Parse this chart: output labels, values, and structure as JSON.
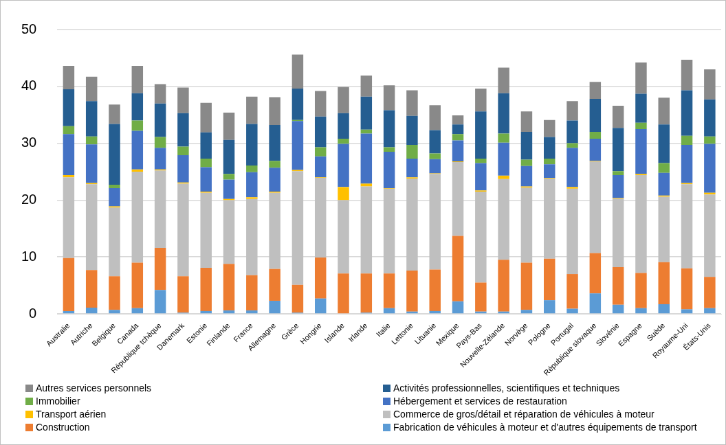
{
  "chart_data": {
    "type": "bar",
    "stacked": true,
    "categories": [
      "Australie",
      "Autriche",
      "Belgique",
      "Canada",
      "République tchèque",
      "Danemark",
      "Estonie",
      "Finlande",
      "France",
      "Allemagne",
      "Grèce",
      "Hongrie",
      "Islande",
      "Irlande",
      "Italie",
      "Lettonie",
      "Lituanie",
      "Mexique",
      "Pays-Bas",
      "Nouvelle-Zélande",
      "Norvège",
      "Pologne",
      "Portugal",
      "République slovaque",
      "Slovénie",
      "Espagne",
      "Suède",
      "Royaume-Uni",
      "États-Unis"
    ],
    "series": [
      {
        "name": "Fabrication de véhicules à moteur et d'autres équipements de transport",
        "color": "#5b9bd5",
        "values": [
          0.5,
          1.1,
          0.7,
          1.0,
          4.2,
          0.2,
          0.5,
          0.6,
          0.6,
          2.3,
          0.2,
          2.7,
          null,
          0.2,
          1.0,
          0.4,
          0.5,
          2.2,
          0.4,
          0.4,
          0.7,
          2.4,
          0.9,
          3.6,
          1.6,
          1.0,
          1.7,
          0.8,
          1.0
        ]
      },
      {
        "name": "Construction",
        "color": "#ed7d31",
        "values": [
          9.3,
          6.6,
          5.9,
          8.0,
          7.4,
          6.4,
          7.6,
          8.2,
          6.2,
          5.6,
          4.9,
          7.2,
          7.1,
          6.9,
          6.1,
          7.2,
          7.3,
          11.5,
          5.1,
          9.1,
          8.3,
          7.3,
          6.1,
          7.1,
          6.6,
          6.2,
          7.4,
          7.2,
          5.5
        ]
      },
      {
        "name": "Commerce de gros/détail et réparation de véhicules à moteur",
        "color": "#bfbfbf",
        "values": [
          14.2,
          15.1,
          12.1,
          16.0,
          13.6,
          16.3,
          13.2,
          11.2,
          13.4,
          13.4,
          20.0,
          14.0,
          12.9,
          15.3,
          14.9,
          16.2,
          16.8,
          13.0,
          16.0,
          14.2,
          13.2,
          14.1,
          15.0,
          16.1,
          12.1,
          17.2,
          11.5,
          14.8,
          14.5
        ]
      },
      {
        "name": "Transport aérien",
        "color": "#ffc000",
        "values": [
          0.4,
          0.2,
          0.2,
          0.4,
          0.2,
          0.2,
          0.2,
          0.2,
          0.3,
          0.2,
          0.2,
          0.1,
          2.3,
          0.5,
          0.1,
          0.2,
          0.1,
          0.1,
          0.2,
          0.6,
          0.2,
          0.1,
          0.3,
          0.1,
          0.1,
          0.2,
          0.2,
          0.2,
          0.3
        ]
      },
      {
        "name": "Hébergement et services de restauration",
        "color": "#4472c4",
        "values": [
          7.2,
          6.8,
          3.2,
          6.8,
          3.8,
          4.8,
          4.3,
          3.4,
          4.4,
          4.2,
          8.6,
          3.7,
          7.6,
          8.8,
          6.4,
          3.3,
          2.5,
          3.7,
          4.8,
          5.8,
          3.6,
          2.4,
          6.9,
          3.9,
          4.0,
          7.9,
          4.0,
          6.7,
          8.6
        ]
      },
      {
        "name": "Immobilier",
        "color": "#70ad47",
        "values": [
          1.4,
          1.4,
          0.6,
          1.8,
          1.9,
          1.5,
          1.5,
          1.0,
          1.2,
          1.2,
          0.2,
          1.6,
          0.9,
          0.7,
          0.8,
          2.4,
          1.0,
          1.1,
          0.8,
          1.6,
          1.1,
          1.0,
          0.8,
          1.2,
          0.7,
          1.1,
          1.7,
          1.6,
          1.3
        ]
      },
      {
        "name": "Activités professionnelles, scientifiques et techniques",
        "color": "#255e91",
        "values": [
          6.5,
          6.2,
          10.7,
          4.8,
          5.9,
          5.9,
          4.6,
          6.0,
          7.3,
          6.3,
          5.5,
          5.4,
          4.5,
          5.8,
          6.5,
          5.1,
          4.1,
          1.7,
          8.3,
          7.1,
          4.9,
          3.8,
          4.0,
          5.8,
          7.6,
          5.1,
          6.8,
          8.0,
          6.5
        ]
      },
      {
        "name": "Autres services personnels",
        "color": "#898989",
        "values": [
          4.1,
          4.3,
          3.4,
          4.8,
          3.4,
          4.5,
          5.2,
          4.8,
          4.8,
          4.9,
          6.0,
          4.5,
          4.6,
          3.7,
          4.4,
          4.5,
          4.4,
          1.6,
          4.0,
          4.5,
          3.6,
          3.0,
          3.4,
          3.0,
          3.9,
          5.5,
          4.7,
          5.4,
          5.3
        ]
      }
    ],
    "ylim": [
      0,
      50
    ],
    "yticks": [
      0,
      10,
      20,
      30,
      40,
      50
    ],
    "grid": "y",
    "legend": "bottom"
  }
}
